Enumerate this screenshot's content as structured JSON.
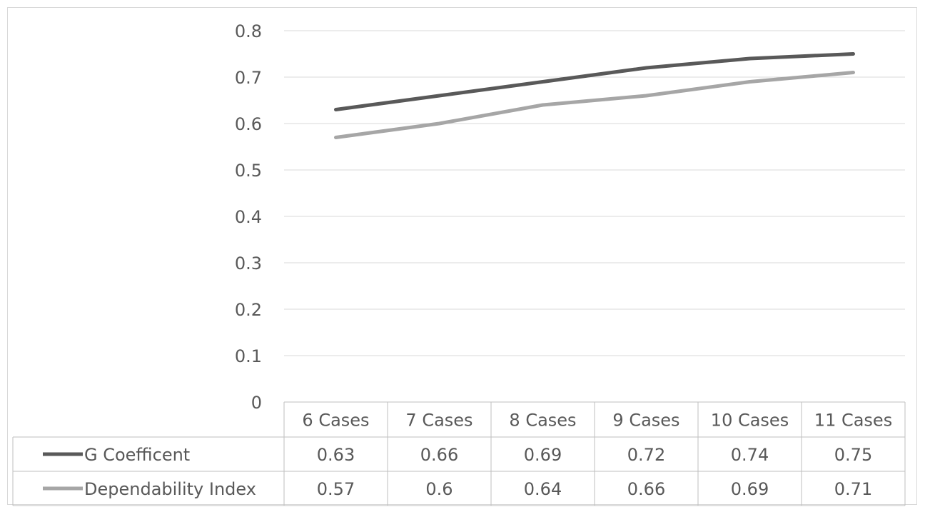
{
  "chart_data": {
    "type": "line",
    "categories": [
      "6 Cases",
      "7 Cases",
      "8 Cases",
      "9 Cases",
      "10 Cases",
      "11 Cases"
    ],
    "y_ticks": [
      "0",
      "0.1",
      "0.2",
      "0.3",
      "0.4",
      "0.5",
      "0.6",
      "0.7",
      "0.8"
    ],
    "ylim": [
      0,
      0.8
    ],
    "grid": true,
    "legend": "data-table",
    "series": [
      {
        "name": "G Coefficent",
        "values": [
          0.63,
          0.66,
          0.69,
          0.72,
          0.74,
          0.75
        ],
        "labels": [
          "0.63",
          "0.66",
          "0.69",
          "0.72",
          "0.74",
          "0.75"
        ],
        "color": "#595959"
      },
      {
        "name": "Dependability Index",
        "values": [
          0.57,
          0.6,
          0.64,
          0.66,
          0.69,
          0.71
        ],
        "labels": [
          "0.57",
          "0.6",
          "0.64",
          "0.66",
          "0.69",
          "0.71"
        ],
        "color": "#a6a6a6"
      }
    ]
  }
}
